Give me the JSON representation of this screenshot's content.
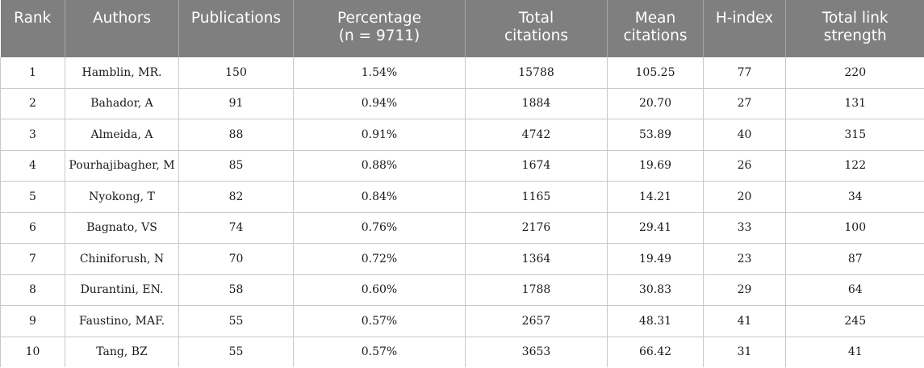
{
  "table": {
    "headers": [
      [
        "Rank"
      ],
      [
        "Authors"
      ],
      [
        "Publications"
      ],
      [
        "Percentage",
        "(n = 9711)"
      ],
      [
        "Total",
        "citations"
      ],
      [
        "Mean",
        "citations"
      ],
      [
        "H-index"
      ],
      [
        "Total link",
        "strength"
      ]
    ],
    "rows": [
      [
        "1",
        "Hamblin, MR.",
        "150",
        "1.54%",
        "15788",
        "105.25",
        "77",
        "220"
      ],
      [
        "2",
        "Bahador, A",
        "91",
        "0.94%",
        "1884",
        "20.70",
        "27",
        "131"
      ],
      [
        "3",
        "Almeida, A",
        "88",
        "0.91%",
        "4742",
        "53.89",
        "40",
        "315"
      ],
      [
        "4",
        "Pourhajibagher, M",
        "85",
        "0.88%",
        "1674",
        "19.69",
        "26",
        "122"
      ],
      [
        "5",
        "Nyokong, T",
        "82",
        "0.84%",
        "1165",
        "14.21",
        "20",
        "34"
      ],
      [
        "6",
        "Bagnato, VS",
        "74",
        "0.76%",
        "2176",
        "29.41",
        "33",
        "100"
      ],
      [
        "7",
        "Chiniforush, N",
        "70",
        "0.72%",
        "1364",
        "19.49",
        "23",
        "87"
      ],
      [
        "8",
        "Durantini, EN.",
        "58",
        "0.60%",
        "1788",
        "30.83",
        "29",
        "64"
      ],
      [
        "9",
        "Faustino, MAF.",
        "55",
        "0.57%",
        "2657",
        "48.31",
        "41",
        "245"
      ],
      [
        "10",
        "Tang, BZ",
        "55",
        "0.57%",
        "3653",
        "66.42",
        "31",
        "41"
      ]
    ]
  }
}
